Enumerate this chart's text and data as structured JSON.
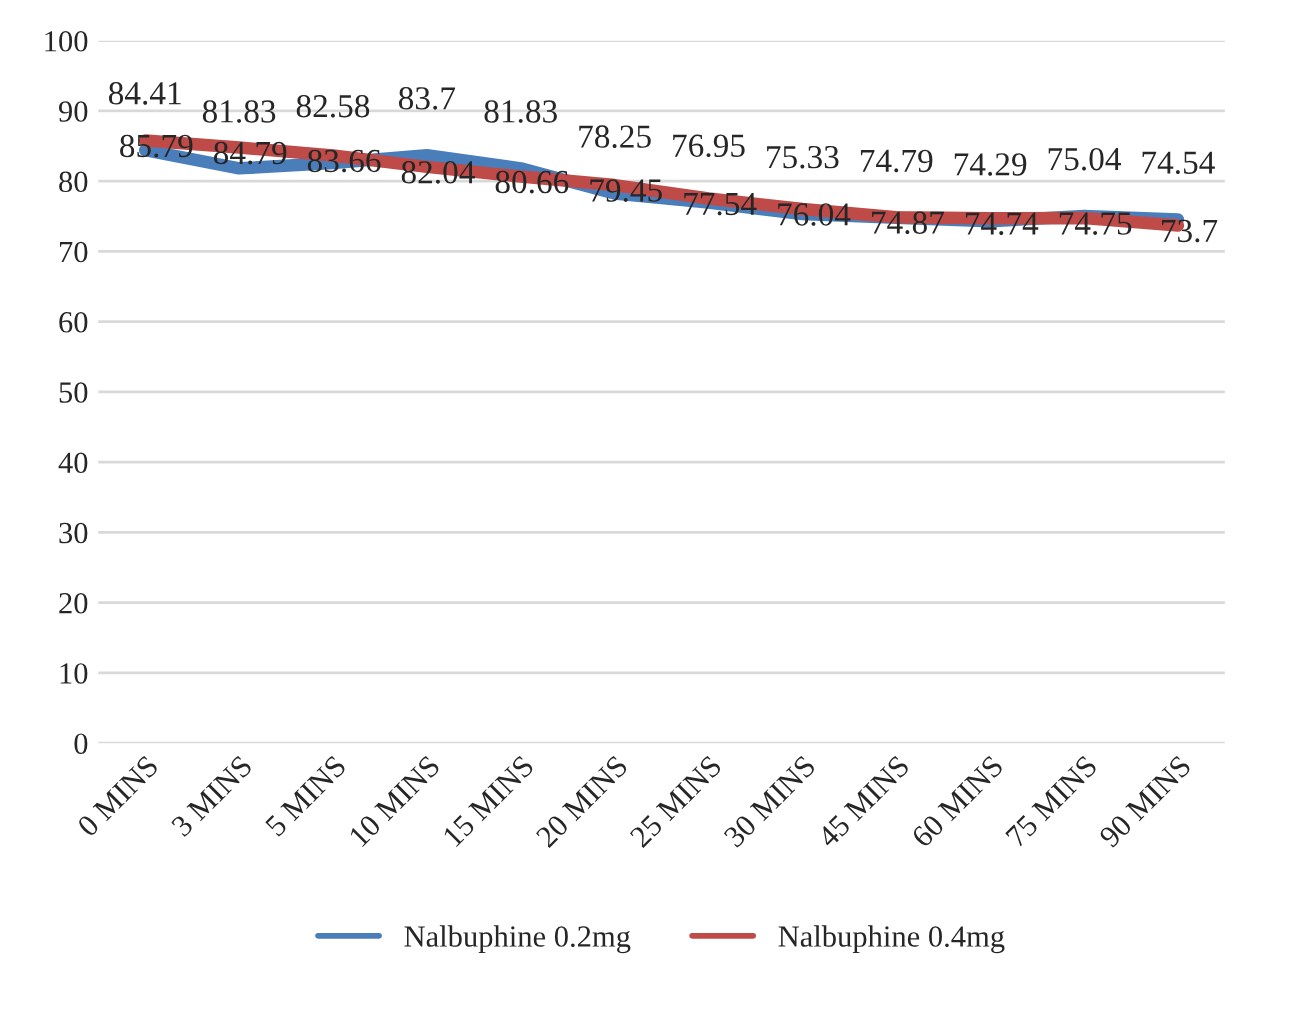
{
  "chart_data": {
    "type": "line",
    "categories": [
      "0 MINS",
      "3 MINS",
      "5 MINS",
      "10 MINS",
      "15 MINS",
      "20 MINS",
      "25 MINS",
      "30 MINS",
      "45 MINS",
      "60 MINS",
      "75 MINS",
      "90 MINS"
    ],
    "series": [
      {
        "name": "Nalbuphine 0.2mg",
        "color": "#4a7ebb",
        "values": [
          84.41,
          81.83,
          82.58,
          83.7,
          81.83,
          78.25,
          76.95,
          75.33,
          74.79,
          74.29,
          75.04,
          74.54
        ]
      },
      {
        "name": "Nalbuphine 0.4mg",
        "color": "#be4b48",
        "values": [
          85.79,
          84.79,
          83.66,
          82.04,
          80.66,
          79.45,
          77.54,
          76.04,
          74.87,
          74.74,
          74.75,
          73.7
        ]
      }
    ],
    "ylim": [
      0,
      100
    ],
    "yticks": [
      0,
      10,
      20,
      30,
      40,
      50,
      60,
      70,
      80,
      90,
      100
    ],
    "grid": "y",
    "legend": "bottom",
    "data_labels": true,
    "marker": "none",
    "line_style": "solid"
  }
}
